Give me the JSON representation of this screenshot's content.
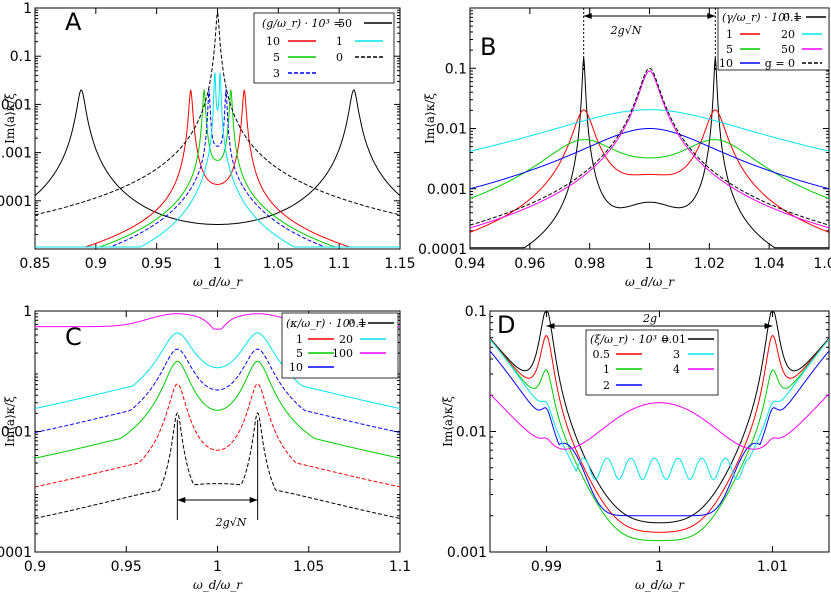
{
  "chart_data": [
    {
      "panel": "A",
      "type": "line",
      "xlabel": "ω_d/ω_r",
      "ylabel": "Im⟨a⟩κ/ξ",
      "xlim": [
        0.85,
        1.15
      ],
      "ylim": [
        1e-05,
        1
      ],
      "yscale": "log",
      "xticks": [
        "0.85",
        "0.9",
        "0.95",
        "1",
        "1.05",
        "1.1",
        "1.15"
      ],
      "yticks": [
        "1",
        "0.1",
        "0.01",
        "0.001",
        "0.0001"
      ],
      "legend_title": "(g/ω_r) · 10³ =",
      "legend_placement": "top-right",
      "series": [
        {
          "name": "50",
          "color": "#000000",
          "dash": "solid",
          "peaks": [
            0.888,
            1.112
          ],
          "peak_height": 0.02,
          "floor": 4e-05
        },
        {
          "name": "10",
          "color": "#ff0000",
          "dash": "solid",
          "peaks": [
            0.978,
            1.022
          ],
          "peak_height": 0.02,
          "floor": 0.001
        },
        {
          "name": "5",
          "color": "#00cc00",
          "dash": "solid",
          "peaks": [
            0.989,
            1.011
          ],
          "peak_height": 0.02,
          "floor": 0.004
        },
        {
          "name": "3",
          "color": "#0000ff",
          "dash": "dashed",
          "peaks": [
            0.993,
            1.007
          ],
          "peak_height": 0.02,
          "floor": 0.01
        },
        {
          "name": "1",
          "color": "#00e5ee",
          "dash": "solid",
          "peaks": [
            0.9978,
            1.0022
          ],
          "peak_height": 0.05,
          "floor": 0.03
        },
        {
          "name": "0",
          "color": "#000000",
          "dash": "dashed",
          "peaks": [
            1.0
          ],
          "peak_height": 1.0,
          "floor": 1.0
        }
      ]
    },
    {
      "panel": "B",
      "type": "line",
      "xlabel": "ω_d/ω_r",
      "ylabel": "Im⟨a⟩κ/ξ",
      "xlim": [
        0.94,
        1.06
      ],
      "ylim": [
        0.0001,
        1
      ],
      "yscale": "log",
      "xticks": [
        "0.94",
        "0.96",
        "0.98",
        "1",
        "1.02",
        "1.04",
        "1.06"
      ],
      "yticks": [
        "0.1",
        "0.01",
        "0.001",
        "0.0001"
      ],
      "legend_title": "(γ/ω_r) · 10³ =",
      "legend_placement": "top-right",
      "annotation": "2g√N",
      "series": [
        {
          "name": "0.1",
          "color": "#000000",
          "dash": "solid"
        },
        {
          "name": "1",
          "color": "#ff0000",
          "dash": "solid"
        },
        {
          "name": "5",
          "color": "#00cc00",
          "dash": "solid"
        },
        {
          "name": "10",
          "color": "#0000ff",
          "dash": "solid"
        },
        {
          "name": "20",
          "color": "#00e5ee",
          "dash": "solid"
        },
        {
          "name": "50",
          "color": "#ff00ff",
          "dash": "solid"
        },
        {
          "name": "g = 0",
          "color": "#000000",
          "dash": "dashed"
        }
      ]
    },
    {
      "panel": "C",
      "type": "line",
      "xlabel": "ω_d/ω_r",
      "ylabel": "Im⟨a⟩κ/ξ",
      "xlim": [
        0.9,
        1.1
      ],
      "ylim": [
        0.0001,
        1
      ],
      "yscale": "log",
      "xticks": [
        "0.9",
        "0.95",
        "1",
        "1.05",
        "1.1"
      ],
      "yticks": [
        "1",
        "0.01",
        "0.0001"
      ],
      "legend_title": "(κ/ω_r) · 10³ =",
      "legend_placement": "top-right",
      "annotation": "2g√N",
      "series": [
        {
          "name": "0.1",
          "color": "#000000",
          "dash": "dashed"
        },
        {
          "name": "1",
          "color": "#ff0000",
          "dash": "dashed"
        },
        {
          "name": "5",
          "color": "#00cc00",
          "dash": "solid"
        },
        {
          "name": "10",
          "color": "#0000ff",
          "dash": "dashed"
        },
        {
          "name": "20",
          "color": "#00e5ee",
          "dash": "solid"
        },
        {
          "name": "100",
          "color": "#ff00ff",
          "dash": "solid"
        }
      ]
    },
    {
      "panel": "D",
      "type": "line",
      "xlabel": "ω_d/ω_r",
      "ylabel": "Im⟨a⟩κ/ξ",
      "xlim": [
        0.985,
        1.015
      ],
      "ylim": [
        0.001,
        0.1
      ],
      "yscale": "log",
      "xticks": [
        "0.99",
        "1",
        "1.01"
      ],
      "yticks": [
        "0.1",
        "0.01",
        "0.001"
      ],
      "legend_title": "(ξ/ω_r) · 10³ =",
      "legend_placement": "top-center",
      "annotation": "2g",
      "series": [
        {
          "name": "0.01",
          "color": "#000000",
          "dash": "solid"
        },
        {
          "name": "0.5",
          "color": "#ff0000",
          "dash": "solid"
        },
        {
          "name": "1",
          "color": "#00cc00",
          "dash": "solid"
        },
        {
          "name": "2",
          "color": "#0000ff",
          "dash": "solid"
        },
        {
          "name": "3",
          "color": "#00e5ee",
          "dash": "solid"
        },
        {
          "name": "4",
          "color": "#ff00ff",
          "dash": "solid"
        }
      ]
    }
  ]
}
